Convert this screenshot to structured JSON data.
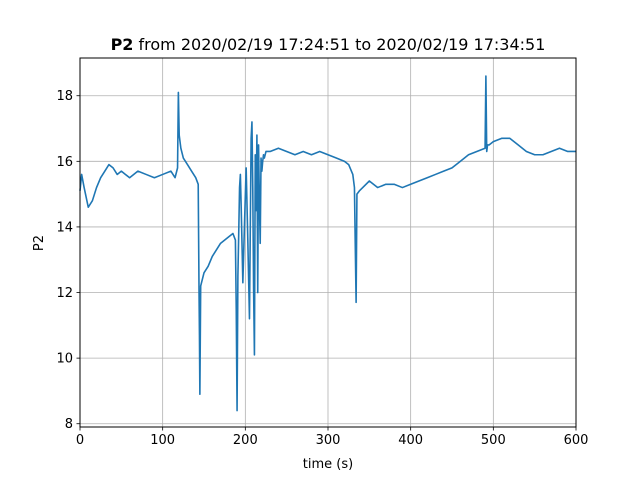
{
  "chart_data": {
    "type": "line",
    "title_bold": "P2",
    "title_rest": " from 2020/02/19 17:24:51 to 2020/02/19 17:34:51",
    "xlabel": "time (s)",
    "ylabel": "P2",
    "xlim": [
      0,
      600
    ],
    "ylim": [
      7.9,
      19.15
    ],
    "xticks": [
      0,
      100,
      200,
      300,
      400,
      500,
      600
    ],
    "yticks": [
      8,
      10,
      12,
      14,
      16,
      18
    ],
    "grid": true,
    "line_color": "#1f77b4",
    "series": [
      {
        "x": [
          0,
          2,
          5,
          10,
          15,
          20,
          25,
          30,
          35,
          40,
          45,
          50,
          55,
          60,
          70,
          80,
          90,
          100,
          110,
          115,
          118,
          119,
          120,
          122,
          125,
          130,
          135,
          140,
          143,
          144,
          144.5,
          145,
          146,
          150,
          155,
          160,
          170,
          180,
          185,
          188,
          189,
          190,
          191,
          192,
          193,
          194,
          195,
          197,
          199,
          201,
          203,
          205,
          207,
          208,
          209,
          210,
          211,
          212,
          213,
          214,
          215,
          216,
          217,
          218,
          219,
          220,
          221,
          222,
          223,
          225,
          230,
          240,
          250,
          260,
          270,
          280,
          290,
          300,
          310,
          320,
          325,
          330,
          332,
          333,
          334,
          335,
          338,
          342,
          350,
          360,
          370,
          380,
          390,
          400,
          410,
          420,
          430,
          440,
          450,
          460,
          470,
          480,
          490,
          491,
          492,
          493,
          495,
          500,
          510,
          520,
          530,
          540,
          550,
          560,
          570,
          580,
          590,
          600
        ],
        "y": [
          15.1,
          15.6,
          15.2,
          14.6,
          14.8,
          15.2,
          15.5,
          15.7,
          15.9,
          15.8,
          15.6,
          15.7,
          15.6,
          15.5,
          15.7,
          15.6,
          15.5,
          15.6,
          15.7,
          15.5,
          15.8,
          18.1,
          16.8,
          16.4,
          16.1,
          15.9,
          15.7,
          15.5,
          15.3,
          12.0,
          10.7,
          8.9,
          12.2,
          12.6,
          12.8,
          13.1,
          13.5,
          13.7,
          13.8,
          13.6,
          11.5,
          8.4,
          12.5,
          13.8,
          15.2,
          15.6,
          14.6,
          12.3,
          14.1,
          15.8,
          13.6,
          11.2,
          16.7,
          17.2,
          15.2,
          12.1,
          10.1,
          16.2,
          14.5,
          16.8,
          12.0,
          16.5,
          14.8,
          13.5,
          16.1,
          15.7,
          16.0,
          16.2,
          16.1,
          16.3,
          16.3,
          16.4,
          16.3,
          16.2,
          16.3,
          16.2,
          16.3,
          16.2,
          16.1,
          16.0,
          15.9,
          15.6,
          15.2,
          13.4,
          11.7,
          15.0,
          15.1,
          15.2,
          15.4,
          15.2,
          15.3,
          15.3,
          15.2,
          15.3,
          15.4,
          15.5,
          15.6,
          15.7,
          15.8,
          16.0,
          16.2,
          16.3,
          16.4,
          18.6,
          16.3,
          16.5,
          16.5,
          16.6,
          16.7,
          16.7,
          16.5,
          16.3,
          16.2,
          16.2,
          16.3,
          16.4,
          16.3,
          16.3
        ]
      }
    ]
  }
}
